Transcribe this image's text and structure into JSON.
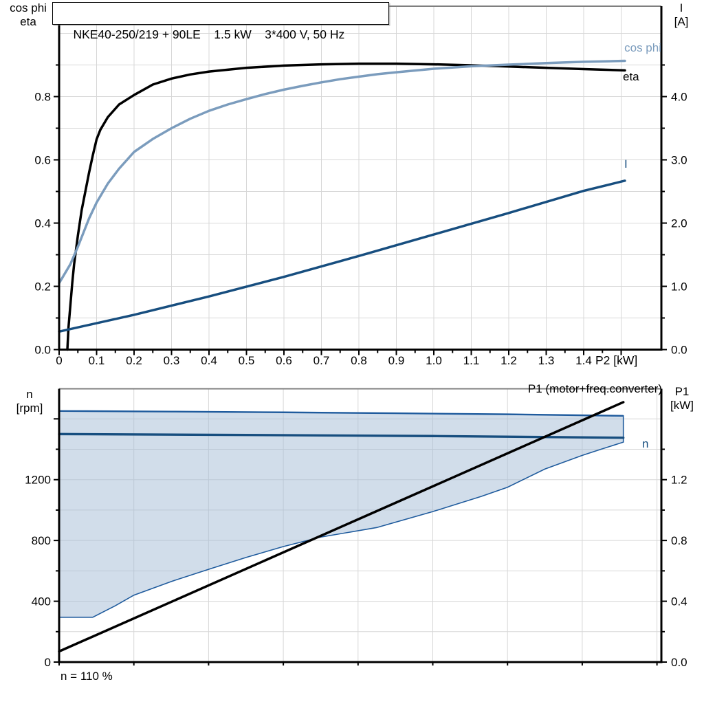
{
  "header": {
    "title": "NKE40-250/219 + 90LE    1.5 kW    3*400 V, 50 Hz"
  },
  "style": {
    "grid": "#d7d7d7",
    "frame": "#7f7f7f",
    "black": "#000000",
    "accent_light_blue": "#7b9cbd",
    "accent_dark_blue": "#174e7f",
    "band_fill": "rgba(164,188,214,0.5)",
    "band_stroke": "#1f5b9d"
  },
  "labels": {
    "top_left_axis_line1": "cos phi",
    "top_left_axis_line2": "eta",
    "top_right_axis_line1": "I",
    "top_right_axis_line2": "[A]",
    "top_x_axis": "P2 [kW]",
    "curve_cos_phi": "cos phi",
    "curve_eta": "eta",
    "curve_I": "I",
    "bottom_left_axis_line1": "n",
    "bottom_left_axis_line2": "[rpm]",
    "bottom_right_axis_line1": "P1",
    "bottom_right_axis_line2": "[kW]",
    "curve_p1": "P1 (motor+freq.converter)",
    "curve_n": "n",
    "note": "n = 110 %"
  },
  "chart_data": [
    {
      "type": "line",
      "title": "NKE40-250/219 + 90LE  1.5 kW  3*400 V, 50 Hz",
      "x_axis": {
        "label": "P2 [kW]",
        "min": 0,
        "max": 1.61,
        "tick_step": 0.1,
        "tick_max": 1.5,
        "minor_max": 1.45,
        "grid_step": 0.1,
        "grid_max": 1.5,
        "tick_labels": [
          "0",
          "0.1",
          "0.2",
          "0.3",
          "0.4",
          "0.5",
          "0.6",
          "0.7",
          "0.8",
          "0.9",
          "1.0",
          "1.1",
          "1.2",
          "1.3",
          "1.4"
        ]
      },
      "y_left": {
        "label": "cos phi / eta",
        "min": 0,
        "max": 1.09,
        "tick_step": 0.2,
        "tick_max": 0.8,
        "minor_max": 0.9,
        "grid_step": 0.1,
        "grid_max": 1.0,
        "tick_labels": [
          "0.0",
          "0.2",
          "0.4",
          "0.6",
          "0.8"
        ]
      },
      "y_right": {
        "label": "I [A]",
        "min": 0,
        "max": 5.4,
        "tick_step": 1.0,
        "tick_max": 4.0,
        "minor_max": 4.5,
        "tick_labels": [
          "0.0",
          "1.0",
          "2.0",
          "3.0",
          "4.0"
        ]
      },
      "series": [
        {
          "id": "eta",
          "name": "eta",
          "axis": "left",
          "color": "#000000",
          "width": 3.5,
          "points": [
            [
              0.022,
              0
            ],
            [
              0.025,
              0.07
            ],
            [
              0.03,
              0.14
            ],
            [
              0.035,
              0.21
            ],
            [
              0.04,
              0.27
            ],
            [
              0.05,
              0.36
            ],
            [
              0.06,
              0.44
            ],
            [
              0.07,
              0.5
            ],
            [
              0.08,
              0.56
            ],
            [
              0.09,
              0.615
            ],
            [
              0.1,
              0.665
            ],
            [
              0.11,
              0.695
            ],
            [
              0.13,
              0.735
            ],
            [
              0.16,
              0.775
            ],
            [
              0.2,
              0.805
            ],
            [
              0.25,
              0.838
            ],
            [
              0.3,
              0.857
            ],
            [
              0.35,
              0.87
            ],
            [
              0.4,
              0.879
            ],
            [
              0.5,
              0.891
            ],
            [
              0.6,
              0.898
            ],
            [
              0.7,
              0.902
            ],
            [
              0.8,
              0.904
            ],
            [
              0.9,
              0.904
            ],
            [
              1.0,
              0.902
            ],
            [
              1.1,
              0.899
            ],
            [
              1.2,
              0.895
            ],
            [
              1.3,
              0.891
            ],
            [
              1.4,
              0.887
            ],
            [
              1.51,
              0.883
            ]
          ]
        },
        {
          "id": "cos-phi",
          "name": "cos phi",
          "axis": "left",
          "color": "#7b9cbd",
          "width": 3.5,
          "points": [
            [
              0,
              0.21
            ],
            [
              0.03,
              0.27
            ],
            [
              0.05,
              0.325
            ],
            [
              0.08,
              0.415
            ],
            [
              0.1,
              0.465
            ],
            [
              0.13,
              0.525
            ],
            [
              0.16,
              0.572
            ],
            [
              0.2,
              0.625
            ],
            [
              0.25,
              0.666
            ],
            [
              0.3,
              0.7
            ],
            [
              0.35,
              0.73
            ],
            [
              0.4,
              0.755
            ],
            [
              0.45,
              0.775
            ],
            [
              0.5,
              0.792
            ],
            [
              0.55,
              0.808
            ],
            [
              0.6,
              0.822
            ],
            [
              0.65,
              0.834
            ],
            [
              0.7,
              0.845
            ],
            [
              0.75,
              0.855
            ],
            [
              0.8,
              0.863
            ],
            [
              0.85,
              0.871
            ],
            [
              0.9,
              0.877
            ],
            [
              1.0,
              0.888
            ],
            [
              1.1,
              0.896
            ],
            [
              1.2,
              0.901
            ],
            [
              1.3,
              0.906
            ],
            [
              1.4,
              0.91
            ],
            [
              1.51,
              0.913
            ]
          ]
        },
        {
          "id": "I",
          "name": "I",
          "axis": "right",
          "color": "#174e7f",
          "width": 3.5,
          "points": [
            [
              0,
              0.285
            ],
            [
              0.2,
              0.55
            ],
            [
              0.4,
              0.84
            ],
            [
              0.6,
              1.15
            ],
            [
              0.8,
              1.48
            ],
            [
              1.0,
              1.82
            ],
            [
              1.2,
              2.16
            ],
            [
              1.4,
              2.51
            ],
            [
              1.51,
              2.67
            ]
          ]
        }
      ]
    },
    {
      "type": "line+band",
      "x_axis": {
        "label": "",
        "min": 0,
        "max": 1.61,
        "tick_step": 0.2,
        "tick_max": 1.6,
        "minor_max": 0,
        "grid_step": 0.2,
        "grid_max": 1.6,
        "tick_len": 5,
        "tick_labels": []
      },
      "y_left": {
        "label": "n [rpm]",
        "min": 0,
        "max": 1800,
        "tick_step": 400,
        "tick_max": 1600,
        "minor_max": 1400,
        "grid_step": 200,
        "grid_max": 1600,
        "tick_labels": [
          "0",
          "400",
          "800",
          "1200",
          ""
        ]
      },
      "y_right": {
        "label": "P1 [kW]",
        "min": 0,
        "max": 1.8,
        "tick_step": 0.4,
        "tick_max": 1.2,
        "minor_max": 1.4,
        "tick_labels": [
          "0.0",
          "0.4",
          "0.8",
          "1.2"
        ]
      },
      "band": {
        "name": "speed operating range",
        "axis": "left",
        "fill": "rgba(164,188,214,0.5)",
        "stroke": "#1f5b9d",
        "upper": [
          [
            0,
            1652
          ],
          [
            0.3,
            1648
          ],
          [
            0.6,
            1643
          ],
          [
            0.9,
            1637
          ],
          [
            1.2,
            1630
          ],
          [
            1.51,
            1620
          ]
        ],
        "lower": [
          [
            0,
            295
          ],
          [
            0.09,
            295
          ],
          [
            0.15,
            370
          ],
          [
            0.2,
            440
          ],
          [
            0.3,
            530
          ],
          [
            0.4,
            610
          ],
          [
            0.5,
            688
          ],
          [
            0.6,
            760
          ],
          [
            0.7,
            822
          ],
          [
            0.85,
            885
          ],
          [
            1.0,
            990
          ],
          [
            1.13,
            1090
          ],
          [
            1.2,
            1150
          ],
          [
            1.3,
            1270
          ],
          [
            1.4,
            1360
          ],
          [
            1.45,
            1400
          ],
          [
            1.51,
            1447
          ]
        ]
      },
      "series": [
        {
          "id": "n",
          "name": "n",
          "axis": "left",
          "color": "#174e7f",
          "width": 3.4,
          "points": [
            [
              0,
              1500
            ],
            [
              0.5,
              1494
            ],
            [
              1.0,
              1487
            ],
            [
              1.51,
              1476
            ]
          ]
        },
        {
          "id": "p1",
          "name": "P1 (motor+freq.converter)",
          "axis": "right",
          "color": "#000000",
          "width": 3.5,
          "points": [
            [
              0,
              0.07
            ],
            [
              1.51,
              1.71
            ]
          ]
        }
      ],
      "note": "n = 110 %"
    }
  ]
}
